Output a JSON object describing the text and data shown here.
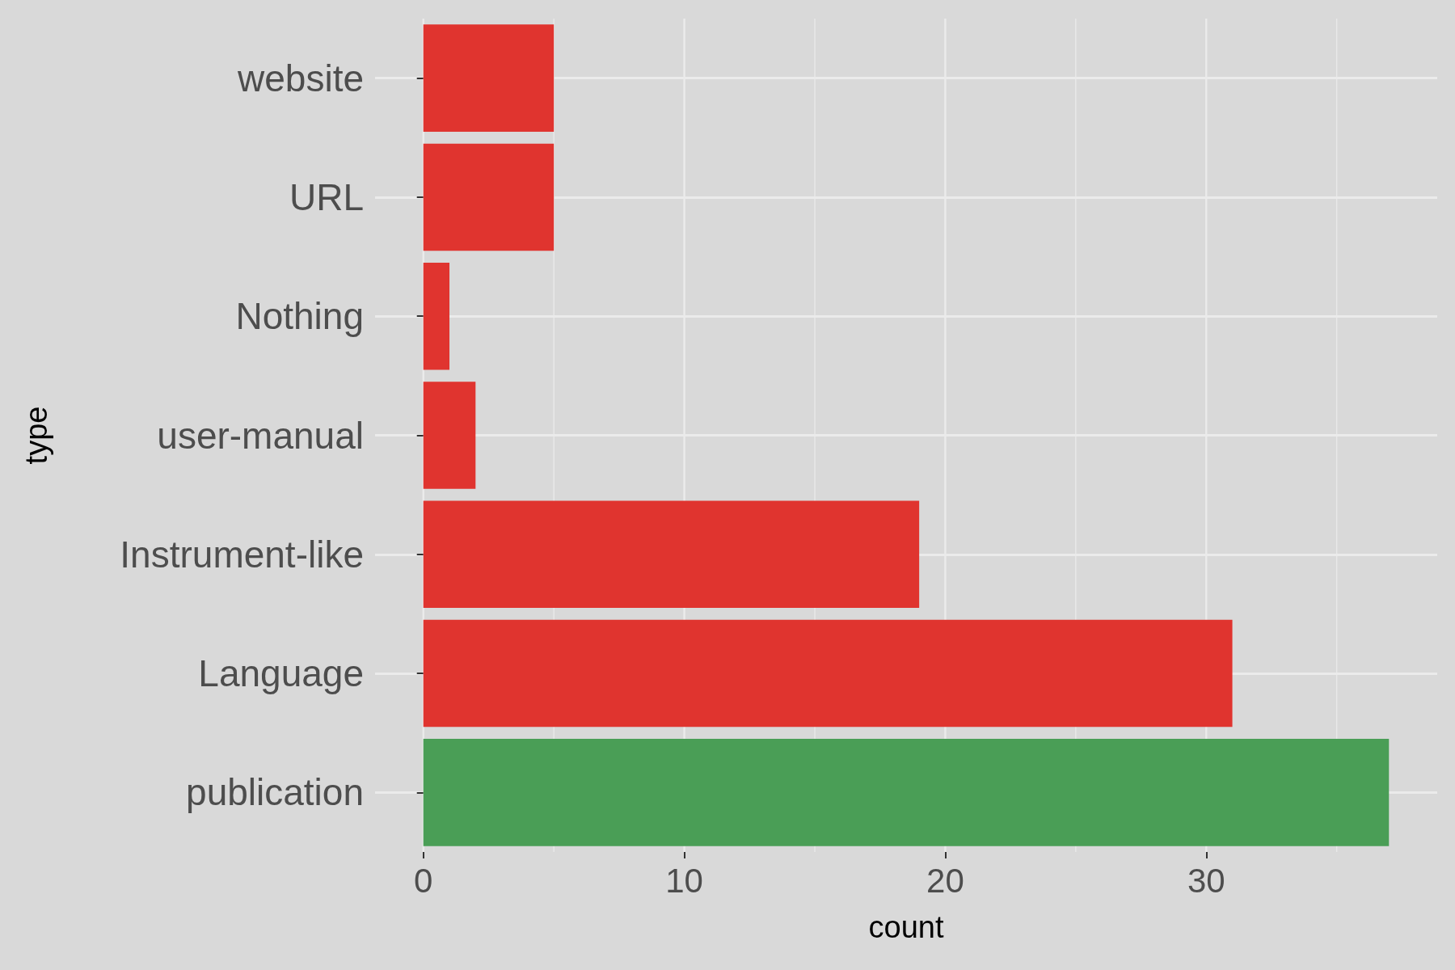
{
  "chart_data": {
    "type": "bar",
    "orientation": "horizontal",
    "xlabel": "count",
    "ylabel": "type",
    "categories": [
      "website",
      "URL",
      "Nothing",
      "user-manual",
      "Instrument-like",
      "Language",
      "publication"
    ],
    "values": [
      5,
      5,
      1,
      2,
      19,
      31,
      37
    ],
    "colors": [
      "#e0342f",
      "#e0342f",
      "#e0342f",
      "#e0342f",
      "#e0342f",
      "#e0342f",
      "#4a9e56"
    ],
    "xlim": [
      -1.85,
      38.85
    ],
    "xticks": [
      0,
      {
        "value": 5,
        "label": null
      },
      10,
      {
        "value": 15,
        "label": null
      },
      20,
      {
        "value": 25,
        "label": null
      },
      30,
      {
        "value": 35,
        "label": null
      }
    ],
    "grid": true
  }
}
